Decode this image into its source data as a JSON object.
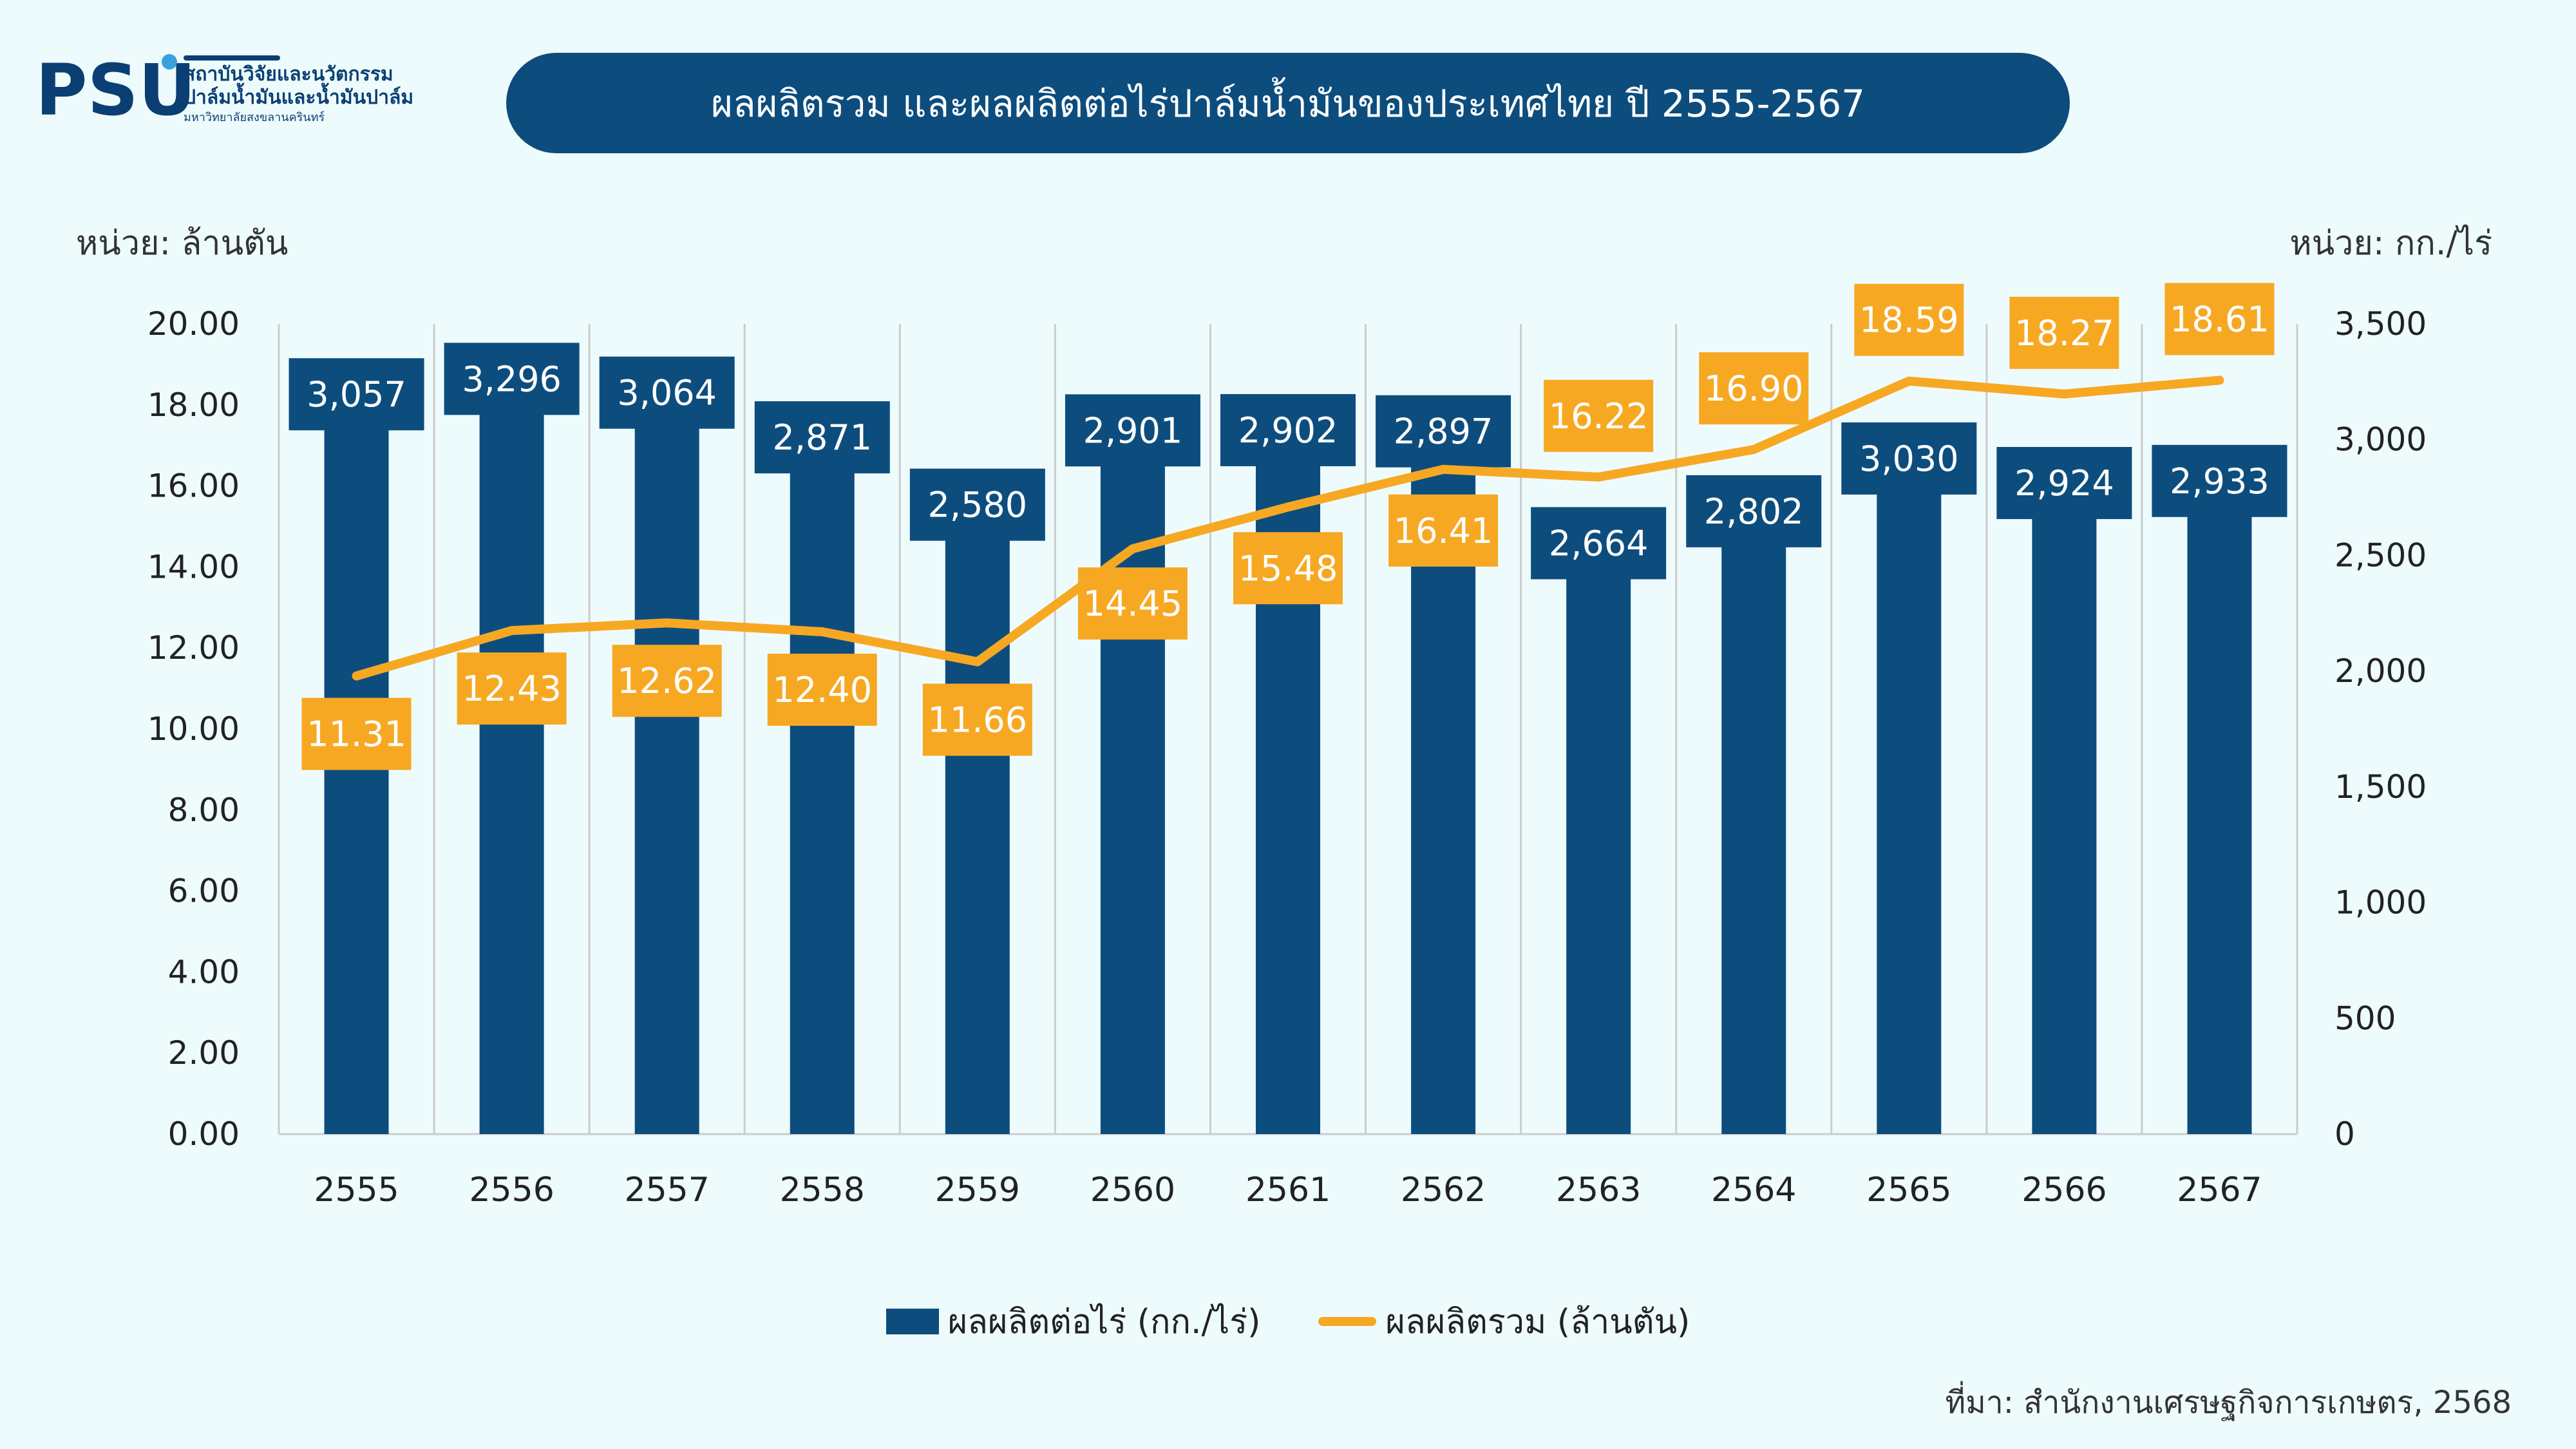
{
  "logo": {
    "mark_text": "PSU",
    "line1": "สถาบันวิจัยและนวัตกรรม",
    "line2": "ปาล์มน้ำมันและน้ำมันปาล์ม",
    "line3": "มหาวิทยาลัยสงขลานครินทร์"
  },
  "title": "ผลผลิตรวม และผลผลิตต่อไร่ปาล์มน้ำมันของประเทศไทย ปี 2555-2567",
  "unit_left": "หน่วย: ล้านตัน",
  "unit_right": "หน่วย: กก./ไร่",
  "source": "ที่มา: สำนักงานเศรษฐกิจการเกษตร, 2568",
  "colors": {
    "bar": "#0d4d7e",
    "line": "#f7a823",
    "grid": "#cccccc"
  },
  "chart_data": {
    "type": "bar",
    "categories": [
      "2555",
      "2556",
      "2557",
      "2558",
      "2559",
      "2560",
      "2561",
      "2562",
      "2563",
      "2564",
      "2565",
      "2566",
      "2567"
    ],
    "series": [
      {
        "name": "ผลผลิตต่อไร่ (กก./ไร่)",
        "type": "bar",
        "axis": "right",
        "values": [
          3057,
          3296,
          3064,
          2871,
          2580,
          2901,
          2902,
          2897,
          2664,
          2802,
          3030,
          2924,
          2933
        ],
        "labels": [
          "3,057",
          "3,296",
          "3,064",
          "2,871",
          "2,580",
          "2,901",
          "2,902",
          "2,897",
          "2,664",
          "2,802",
          "3,030",
          "2,924",
          "2,933"
        ]
      },
      {
        "name": "ผลผลิตรวม (ล้านตัน)",
        "type": "line",
        "axis": "left",
        "values": [
          11.31,
          12.43,
          12.62,
          12.4,
          11.66,
          14.45,
          15.48,
          16.41,
          16.22,
          16.9,
          18.59,
          18.27,
          18.61
        ],
        "labels": [
          "11.31",
          "12.43",
          "12.62",
          "12.40",
          "11.66",
          "14.45",
          "15.48",
          "16.41",
          "16.22",
          "16.90",
          "18.59",
          "18.27",
          "18.61"
        ]
      }
    ],
    "y_left": {
      "min": 0,
      "max": 20,
      "ticks": [
        "0.00",
        "2.00",
        "4.00",
        "6.00",
        "8.00",
        "10.00",
        "12.00",
        "14.00",
        "16.00",
        "18.00",
        "20.00"
      ]
    },
    "y_right": {
      "min": 0,
      "max": 3500,
      "ticks": [
        "0",
        "500",
        "1,000",
        "1,500",
        "2,000",
        "2,500",
        "3,000",
        "3,500"
      ]
    },
    "grid": "vertical",
    "legend_position": "bottom-center"
  }
}
